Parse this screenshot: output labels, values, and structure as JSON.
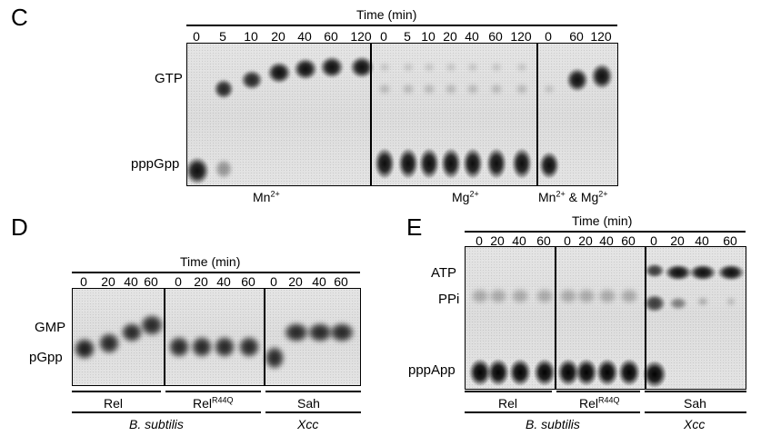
{
  "panelC": {
    "letter": "C",
    "time_header": "Time (min)",
    "time_labels": [
      "0",
      "5",
      "10",
      "20",
      "40",
      "60",
      "120",
      "0",
      "5",
      "10",
      "20",
      "40",
      "60",
      "120",
      "0",
      "60",
      "120"
    ],
    "row_labels": [
      "GTP",
      "pppGpp"
    ],
    "conditions": {
      "mn_base": "Mn",
      "mn_sup": "2+",
      "mg_base": "Mg",
      "mg_sup": "2+",
      "mnmg_a_base": "Mn",
      "mnmg_a_sup": "2+",
      "mnmg_mid": " & Mg",
      "mnmg_b_sup": "2+"
    }
  },
  "panelD": {
    "letter": "D",
    "time_header": "Time (min)",
    "time_labels": [
      "0",
      "20",
      "40",
      "60",
      "0",
      "20",
      "40",
      "60",
      "0",
      "20",
      "40",
      "60"
    ],
    "row_labels": [
      "GMP",
      "pGpp"
    ],
    "lanes_label": {
      "rel": "Rel",
      "relm_base": "Rel",
      "relm_sup": "R44Q",
      "sah": "Sah"
    },
    "species": [
      "B. subtilis",
      "Xcc"
    ]
  },
  "panelE": {
    "letter": "E",
    "time_header": "Time (min)",
    "time_labels": [
      "0",
      "20",
      "40",
      "60",
      "0",
      "20",
      "40",
      "60",
      "0",
      "20",
      "40",
      "60"
    ],
    "row_labels": [
      "ATP",
      "PPi",
      "pppApp"
    ],
    "lanes_label": {
      "rel": "Rel",
      "relm_base": "Rel",
      "relm_sup": "R44Q",
      "sah": "Sah"
    },
    "species": [
      "B. subtilis",
      "Xcc"
    ]
  }
}
